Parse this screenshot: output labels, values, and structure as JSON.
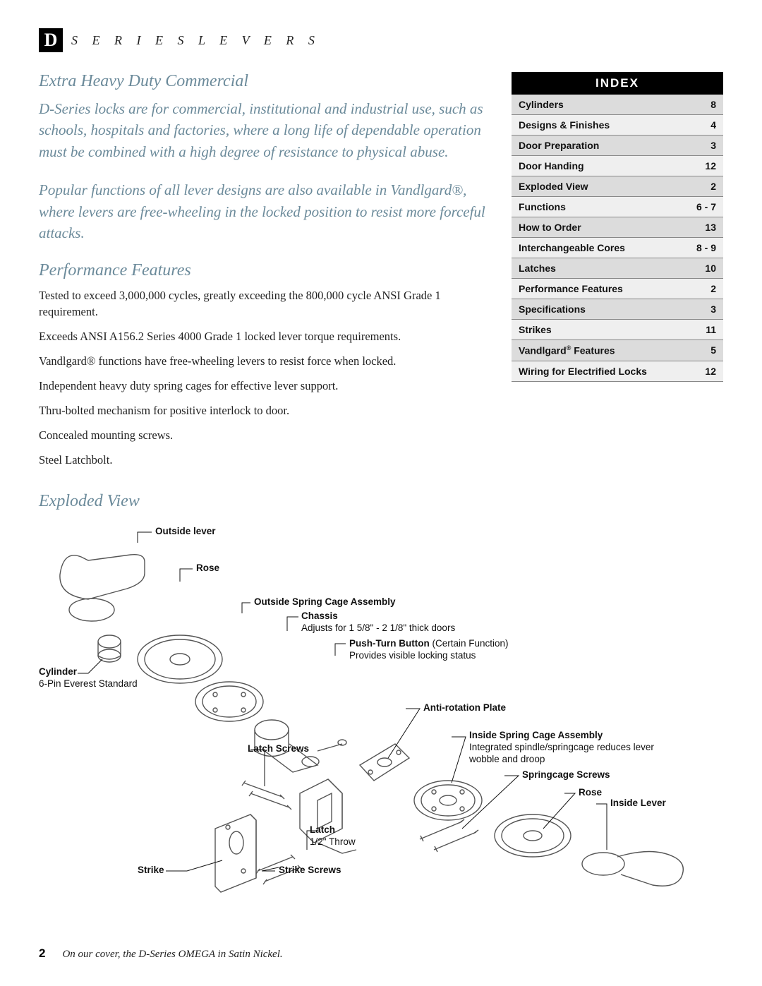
{
  "header": {
    "badge_letter": "D",
    "series_text": "S E R I E S   L E V E R S"
  },
  "intro": {
    "title": "Extra Heavy Duty Commercial",
    "para1": "D-Series locks are for commercial, institutional and industrial use, such as schools, hospitals and factories, where a long life of dependable operation must be combined with a high degree of resistance to physical abuse.",
    "para2": "Popular functions of all lever designs are also available in Vandlgard®, where levers are free-wheeling in the locked position to resist more forceful attacks."
  },
  "performance": {
    "title": "Performance Features",
    "items": [
      "Tested to exceed 3,000,000 cycles, greatly exceeding the 800,000 cycle ANSI Grade 1 requirement.",
      "Exceeds ANSI A156.2 Series 4000 Grade 1 locked lever torque requirements.",
      "Vandlgard® functions have free-wheeling levers to resist force when locked.",
      "Independent heavy duty spring cages for effective lever support.",
      "Thru-bolted mechanism for positive interlock to door.",
      "Concealed mounting screws.",
      "Steel Latchbolt."
    ]
  },
  "index": {
    "header": "INDEX",
    "rows": [
      {
        "label": "Cylinders",
        "page": "8"
      },
      {
        "label": "Designs & Finishes",
        "page": "4"
      },
      {
        "label": "Door Preparation",
        "page": "3"
      },
      {
        "label": "Door Handing",
        "page": "12"
      },
      {
        "label": "Exploded View",
        "page": "2"
      },
      {
        "label": "Functions",
        "page": "6 - 7"
      },
      {
        "label": "How to Order",
        "page": "13"
      },
      {
        "label": "Interchangeable Cores",
        "page": "8 - 9"
      },
      {
        "label": "Latches",
        "page": "10"
      },
      {
        "label": "Performance Features",
        "page": "2"
      },
      {
        "label": "Specifications",
        "page": "3"
      },
      {
        "label": "Strikes",
        "page": "11"
      },
      {
        "label": "Vandlgard® Features",
        "page": "5",
        "sup": true
      },
      {
        "label": "Wiring for Electrified Locks",
        "page": "12"
      }
    ],
    "row_bg_dark": "#dcdcdc",
    "row_bg_light": "#efefef",
    "header_bg": "#000000",
    "header_fg": "#ffffff",
    "row_border": "#888888"
  },
  "exploded": {
    "title": "Exploded View",
    "callouts": {
      "outside_lever": {
        "bold": "Outside lever"
      },
      "rose_top": {
        "bold": "Rose"
      },
      "outside_spring": {
        "bold": "Outside Spring Cage Assembly"
      },
      "chassis": {
        "bold": "Chassis",
        "sub": "Adjusts for 1 5/8\" - 2 1/8\" thick doors"
      },
      "push_turn": {
        "bold": "Push-Turn Button",
        "paren": " (Certain Function)",
        "sub": "Provides visible locking status"
      },
      "cylinder": {
        "bold": "Cylinder",
        "sub": "6-Pin Everest Standard"
      },
      "anti_rotation": {
        "bold": "Anti-rotation Plate"
      },
      "inside_spring": {
        "bold": "Inside Spring Cage Assembly",
        "sub": "Integrated spindle/springcage reduces lever wobble and droop"
      },
      "springcage_screws": {
        "bold": "Springcage Screws"
      },
      "rose_bottom": {
        "bold": "Rose"
      },
      "inside_lever": {
        "bold": "Inside Lever"
      },
      "latch_screws": {
        "bold": "Latch Screws"
      },
      "latch": {
        "bold": "Latch",
        "sub": "1/2\" Throw"
      },
      "strike": {
        "bold": "Strike"
      },
      "strike_screws": {
        "bold": "Strike Screws"
      }
    },
    "diagram_stroke": "#555555",
    "leader_stroke": "#111111"
  },
  "footer": {
    "page_number": "2",
    "caption": "On our cover, the D-Series OMEGA in Satin Nickel."
  },
  "colors": {
    "accent_blue": "#6b8a9a",
    "text": "#222222",
    "background": "#ffffff"
  }
}
